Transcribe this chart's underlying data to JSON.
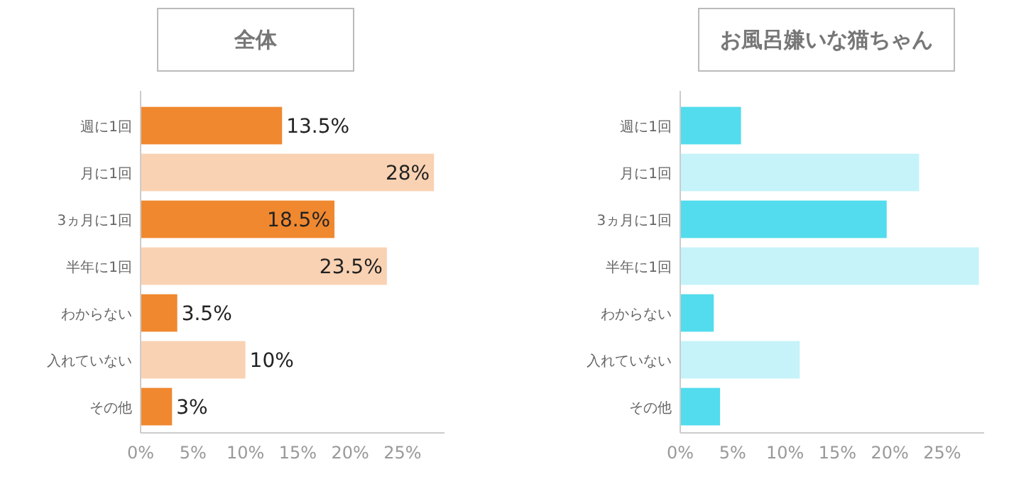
{
  "chart_data": [
    {
      "type": "bar",
      "orientation": "horizontal",
      "title": "全体",
      "categories": [
        "週に1回",
        "月に1回",
        "3ヵ月に1回",
        "半年に1回",
        "わからない",
        "入れていない",
        "その他"
      ],
      "values": [
        13.5,
        28,
        18.5,
        23.5,
        3.5,
        10,
        3
      ],
      "colors": [
        "#f0882f",
        "#f9d2b3",
        "#f0882f",
        "#f9d2b3",
        "#f0882f",
        "#f9d2b3",
        "#f0882f"
      ],
      "value_labels": [
        "13.5%",
        "28%",
        "18.5%",
        "23.5%",
        "3.5%",
        "10%",
        "3%"
      ],
      "xlim": [
        0,
        29
      ],
      "xticks": [
        {
          "value": 0,
          "label": "0%"
        },
        {
          "value": 5,
          "label": "5%"
        },
        {
          "value": 10,
          "label": "10%"
        },
        {
          "value": 15,
          "label": "15%"
        },
        {
          "value": 20,
          "label": "20%"
        },
        {
          "value": 25,
          "label": "25%"
        }
      ],
      "grid": false
    },
    {
      "type": "bar",
      "orientation": "horizontal",
      "title": "お風呂嫌いな猫ちゃん",
      "categories": [
        "週に1回",
        "月に1回",
        "3ヵ月に1回",
        "半年に1回",
        "わからない",
        "入れていない",
        "その他"
      ],
      "values": [
        5.8,
        22.8,
        19.7,
        28.5,
        3.2,
        11.4,
        3.8
      ],
      "colors": [
        "#52dced",
        "#c5f3f9",
        "#52dced",
        "#c5f3f9",
        "#52dced",
        "#c5f3f9",
        "#52dced"
      ],
      "xlim": [
        0,
        29
      ],
      "xticks": [
        {
          "value": 0,
          "label": "0%"
        },
        {
          "value": 5,
          "label": "5%"
        },
        {
          "value": 10,
          "label": "10%"
        },
        {
          "value": 15,
          "label": "15%"
        },
        {
          "value": 20,
          "label": "20%"
        },
        {
          "value": 25,
          "label": "25%"
        }
      ],
      "grid": false
    }
  ]
}
